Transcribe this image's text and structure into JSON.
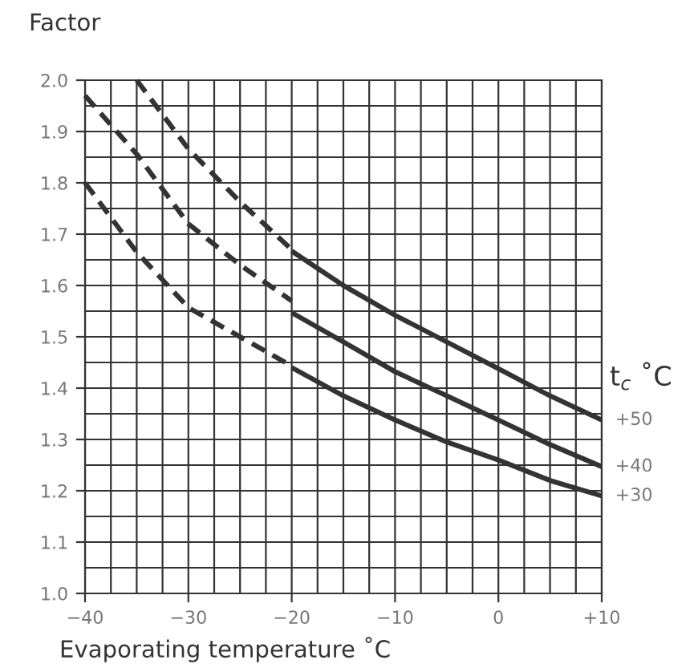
{
  "chart_data": {
    "type": "line",
    "ylabel": "Factor",
    "xlabel": "Evaporating temperature ˚C",
    "legend_title": "t$_{c}$ ˚C",
    "xlim": [
      -40,
      10
    ],
    "ylim": [
      1.0,
      2.0
    ],
    "xticks": [
      -40,
      -30,
      -20,
      -10,
      0,
      {
        "value": 10,
        "label": "+10"
      }
    ],
    "yticks": [
      {
        "value": 1.0,
        "label": "1.0"
      },
      1.1,
      1.2,
      1.3,
      1.4,
      1.5,
      1.6,
      1.7,
      1.8,
      1.9,
      {
        "value": 2.0,
        "label": "2.0"
      }
    ],
    "grid": true,
    "marker": "none",
    "series": [
      {
        "color": "#333333",
        "line_style": "dashed",
        "x": [
          -35,
          -30,
          -25,
          -20
        ],
        "values": [
          2.0,
          1.866,
          1.763,
          1.67
        ]
      },
      {
        "color": "#333333",
        "line_style": "dashed",
        "x": [
          -40,
          -35,
          -30,
          -25,
          -20
        ],
        "values": [
          1.97,
          1.856,
          1.72,
          1.64,
          1.57
        ]
      },
      {
        "color": "#333333",
        "line_style": "dashed",
        "x": [
          -40,
          -35,
          -30,
          -25,
          -20
        ],
        "values": [
          1.8,
          1.665,
          1.557,
          1.5,
          1.443
        ]
      },
      {
        "name": "+50",
        "color": "#333333",
        "line_style": "solid",
        "x": [
          -20,
          -15,
          -10,
          -5,
          0,
          5,
          10
        ],
        "values": [
          1.667,
          1.6,
          1.542,
          1.49,
          1.438,
          1.385,
          1.338
        ]
      },
      {
        "name": "+40",
        "color": "#333333",
        "line_style": "solid",
        "x": [
          -20,
          -15,
          -10,
          -5,
          0,
          5,
          10
        ],
        "values": [
          1.547,
          1.49,
          1.432,
          1.385,
          1.338,
          1.29,
          1.247
        ]
      },
      {
        "name": "+30",
        "color": "#333333",
        "line_style": "solid",
        "x": [
          -20,
          -15,
          -10,
          -5,
          0,
          5,
          10
        ],
        "values": [
          1.44,
          1.385,
          1.338,
          1.295,
          1.26,
          1.22,
          1.19
        ]
      }
    ]
  }
}
